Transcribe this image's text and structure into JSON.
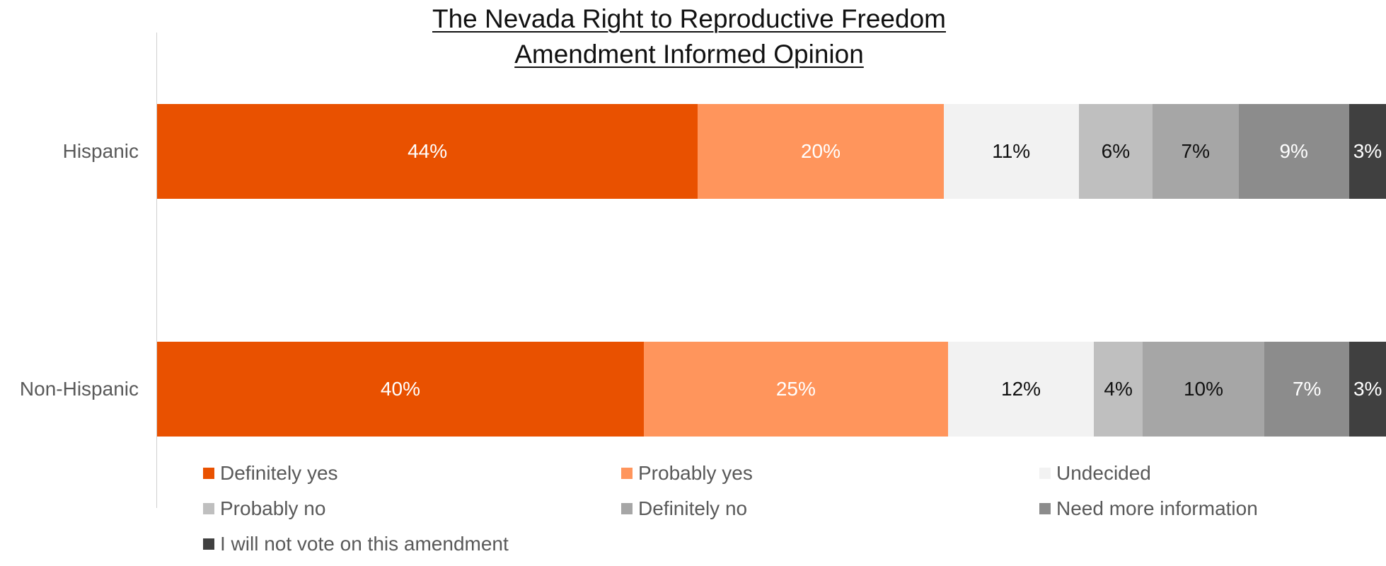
{
  "chart_data": {
    "type": "bar",
    "orientation": "horizontal",
    "stacked": true,
    "title_lines": [
      "The Nevada Right to Reproductive Freedom",
      "Amendment Informed Opinion"
    ],
    "categories": [
      "Hispanic",
      "Non-Hispanic"
    ],
    "value_format": "{v}%",
    "xlim": [
      0,
      100
    ],
    "grid": false,
    "legend_position": "bottom",
    "series": [
      {
        "name": "Definitely yes",
        "values": [
          44,
          40
        ],
        "color": "#E95100",
        "label_color": "#FFFFFF"
      },
      {
        "name": "Probably yes",
        "values": [
          20,
          25
        ],
        "color": "#FF955C",
        "label_color": "#FFFFFF"
      },
      {
        "name": "Undecided",
        "values": [
          11,
          12
        ],
        "color": "#F2F2F2",
        "label_color": "#111111"
      },
      {
        "name": "Probably no",
        "values": [
          6,
          4
        ],
        "color": "#BFBFBF",
        "label_color": "#111111"
      },
      {
        "name": "Definitely no",
        "values": [
          7,
          10
        ],
        "color": "#A6A6A6",
        "label_color": "#111111"
      },
      {
        "name": "Need more information",
        "values": [
          9,
          7
        ],
        "color": "#8C8C8C",
        "label_color": "#FFFFFF"
      },
      {
        "name": "I will not vote on this amendment",
        "values": [
          3,
          3
        ],
        "color": "#404040",
        "label_color": "#FFFFFF"
      }
    ]
  }
}
